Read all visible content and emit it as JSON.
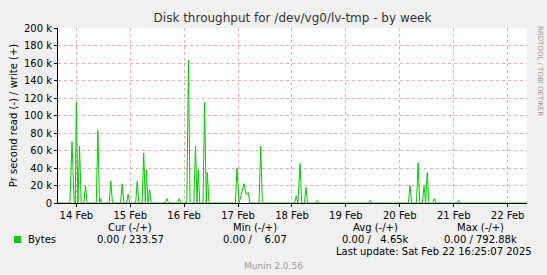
{
  "chart_data": {
    "type": "line",
    "title": "Disk throughput for /dev/vg0/lv-tmp - by week",
    "y_label": "Pr second read (-) / write (+)",
    "x": [
      13.66,
      13.88,
      13.92,
      13.96,
      13.98,
      14.0,
      14.03,
      14.06,
      14.09,
      14.14,
      14.17,
      14.2,
      14.37,
      14.4,
      14.43,
      14.45,
      14.48,
      14.61,
      14.64,
      14.67,
      14.82,
      14.85,
      14.88,
      14.93,
      14.96,
      14.99,
      15.1,
      15.13,
      15.16,
      15.22,
      15.25,
      15.28,
      15.3,
      15.33,
      15.36,
      15.39,
      15.65,
      15.68,
      15.71,
      15.88,
      15.91,
      15.94,
      16.05,
      16.08,
      16.11,
      16.18,
      16.21,
      16.24,
      16.26,
      16.29,
      16.35,
      16.38,
      16.41,
      16.43,
      16.46,
      16.95,
      16.98,
      17.02,
      17.11,
      17.15,
      17.19,
      17.22,
      17.39,
      17.42,
      17.45,
      18.05,
      18.08,
      18.11,
      18.15,
      18.18,
      18.23,
      18.26,
      18.29,
      18.44,
      18.47,
      18.5,
      19.42,
      19.45,
      19.48,
      20.16,
      20.19,
      20.22,
      20.31,
      20.34,
      20.37,
      20.42,
      20.45,
      20.48,
      20.51,
      20.54,
      20.61,
      20.64,
      20.67,
      21.06,
      21.09,
      21.12,
      22.36
    ],
    "series": [
      {
        "name": "Bytes",
        "color": "#00cc00",
        "values": [
          0,
          0,
          70000,
          0,
          0,
          115000,
          0,
          65000,
          0,
          0,
          20000,
          0,
          0,
          83000,
          0,
          5000,
          0,
          0,
          25000,
          0,
          0,
          22000,
          0,
          0,
          10000,
          0,
          0,
          25000,
          0,
          0,
          57000,
          0,
          38000,
          0,
          15000,
          0,
          0,
          5000,
          0,
          0,
          5000,
          0,
          0,
          163000,
          0,
          0,
          65000,
          0,
          38000,
          0,
          0,
          115000,
          0,
          35000,
          0,
          0,
          40000,
          0,
          22000,
          10000,
          12000,
          0,
          0,
          65000,
          0,
          0,
          8000,
          0,
          45000,
          0,
          0,
          18000,
          0,
          0,
          3000,
          0,
          0,
          3000,
          0,
          0,
          20000,
          0,
          0,
          46000,
          0,
          0,
          20000,
          0,
          35000,
          0,
          0,
          5000,
          0,
          0,
          3000,
          0,
          0
        ]
      }
    ],
    "xlim": [
      13.66,
      22.36
    ],
    "xticks": [
      {
        "value": 14,
        "label": "14 Feb"
      },
      {
        "value": 15,
        "label": "15 Feb"
      },
      {
        "value": 16,
        "label": "16 Feb"
      },
      {
        "value": 17,
        "label": "17 Feb"
      },
      {
        "value": 18,
        "label": "18 Feb"
      },
      {
        "value": 19,
        "label": "19 Feb"
      },
      {
        "value": 20,
        "label": "20 Feb"
      },
      {
        "value": 21,
        "label": "21 Feb"
      },
      {
        "value": 22,
        "label": "22 Feb"
      }
    ],
    "ylim": [
      0,
      200000
    ],
    "yticks": [
      0,
      {
        "value": 20000,
        "label": "20 k"
      },
      {
        "value": 40000,
        "label": "40 k"
      },
      {
        "value": 60000,
        "label": "60 k"
      },
      {
        "value": 80000,
        "label": "80 k"
      },
      {
        "value": 100000,
        "label": "100 k"
      },
      {
        "value": 120000,
        "label": "120 k"
      },
      {
        "value": 140000,
        "label": "140 k"
      },
      {
        "value": 160000,
        "label": "160 k"
      },
      {
        "value": 180000,
        "label": "180 k"
      },
      {
        "value": 200000,
        "label": "200 k"
      }
    ],
    "grid": true,
    "stats": {
      "headers": [
        "Cur (-/+)",
        "Min (-/+)",
        "Avg (-/+)",
        "Max (-/+)"
      ],
      "row": [
        "0.00 / 233.57",
        "0.00 /    6.07",
        "0.00 /   4.65k",
        "0.00 / 792.88k"
      ]
    },
    "annotations": [
      "RRDTOOL / TOBI OETIKER",
      "Last update: Sat Feb 22 16:25:07 2025",
      "Munin 2.0.56"
    ]
  }
}
